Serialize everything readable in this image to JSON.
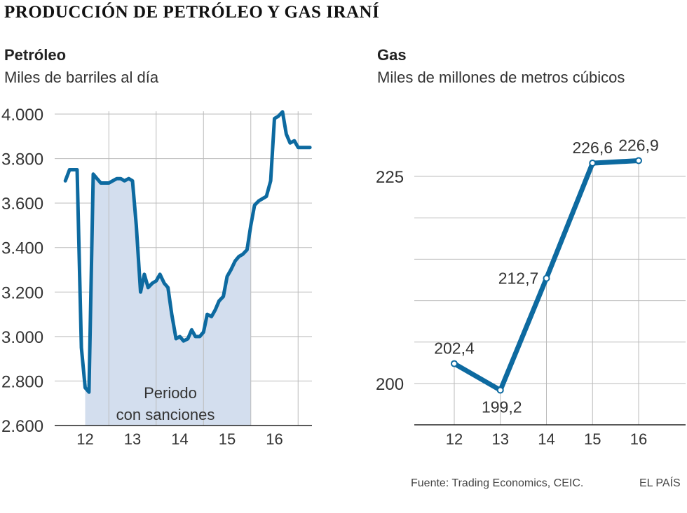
{
  "header": {
    "title": "PRODUCCIÓN DE PETRÓLEO Y GAS IRANÍ"
  },
  "panels": {
    "oil": {
      "title": "Petróleo",
      "subtitle": "Miles de barriles al día"
    },
    "gas": {
      "title": "Gas",
      "subtitle": "Miles de millones de metros cúbicos"
    }
  },
  "footer": {
    "source": "Fuente: Trading Economics, CEIC.",
    "credit": "EL PAÍS"
  },
  "colors": {
    "line": "#0d6aa0",
    "sanctions_fill": "#d3deee",
    "grid": "#bbbbbb",
    "axis": "#222222"
  },
  "chart_data": [
    {
      "type": "line",
      "ylim": [
        2600,
        4000
      ],
      "yticks": [
        2600,
        2800,
        3000,
        3200,
        3400,
        3600,
        3800,
        4000
      ],
      "ytick_labels": [
        "2.600",
        "2.800",
        "3.000",
        "3.200",
        "3.400",
        "3.600",
        "3.800",
        "4.000"
      ],
      "xlim": [
        11.5,
        16.8
      ],
      "xticks": [
        12,
        13,
        14,
        15,
        16
      ],
      "xtick_labels": [
        "12",
        "13",
        "14",
        "15",
        "16"
      ],
      "sanctions": {
        "start": 12.0,
        "end": 15.5,
        "label_line1": "Periodo",
        "label_line2": "con sanciones"
      },
      "x": [
        11.58,
        11.67,
        11.75,
        11.83,
        11.92,
        12.0,
        12.08,
        12.17,
        12.25,
        12.33,
        12.42,
        12.5,
        12.58,
        12.67,
        12.75,
        12.83,
        12.92,
        13.0,
        13.08,
        13.17,
        13.25,
        13.33,
        13.42,
        13.5,
        13.58,
        13.67,
        13.75,
        13.83,
        13.92,
        14.0,
        14.08,
        14.17,
        14.25,
        14.33,
        14.42,
        14.5,
        14.58,
        14.67,
        14.75,
        14.83,
        14.92,
        15.0,
        15.08,
        15.17,
        15.25,
        15.33,
        15.42,
        15.5,
        15.58,
        15.67,
        15.75,
        15.83,
        15.92,
        16.0,
        16.08,
        16.17,
        16.25,
        16.33,
        16.42,
        16.5,
        16.58,
        16.67,
        16.75
      ],
      "values": [
        3700,
        3750,
        3750,
        3750,
        2950,
        2770,
        2750,
        3730,
        3710,
        3690,
        3690,
        3690,
        3700,
        3710,
        3710,
        3700,
        3710,
        3700,
        3500,
        3200,
        3280,
        3220,
        3240,
        3250,
        3280,
        3240,
        3220,
        3100,
        2990,
        3000,
        2980,
        2990,
        3030,
        3000,
        3000,
        3020,
        3100,
        3090,
        3120,
        3160,
        3180,
        3270,
        3300,
        3340,
        3360,
        3370,
        3390,
        3500,
        3590,
        3610,
        3620,
        3630,
        3700,
        3980,
        3990,
        4010,
        3910,
        3870,
        3880,
        3850,
        3850,
        3850,
        3850
      ]
    },
    {
      "type": "line",
      "ylim": [
        195,
        228
      ],
      "yticks": [
        200,
        225
      ],
      "ytick_labels": [
        "200",
        "225"
      ],
      "xticks": [
        12,
        13,
        14,
        15,
        16
      ],
      "xtick_labels": [
        "12",
        "13",
        "14",
        "15",
        "16"
      ],
      "x": [
        12,
        13,
        14,
        15,
        16
      ],
      "values": [
        202.4,
        199.2,
        212.7,
        226.6,
        226.9
      ],
      "data_labels": [
        "202,4",
        "199,2",
        "212,7",
        "226,6",
        "226,9"
      ]
    }
  ]
}
